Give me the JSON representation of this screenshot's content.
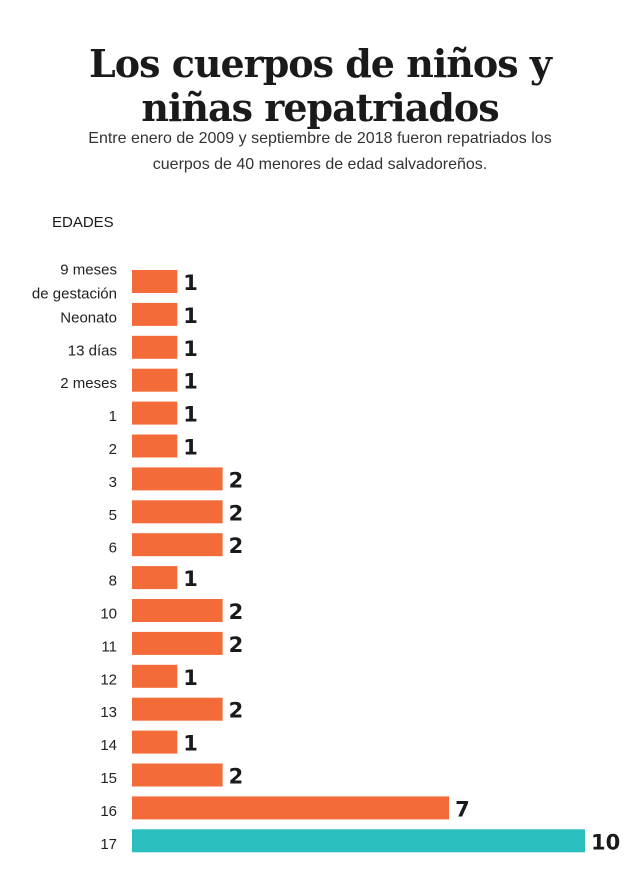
{
  "chart_data": {
    "type": "bar",
    "orientation": "horizontal",
    "title_lines": [
      "Los cuerpos de niños y",
      "niñas repatriados"
    ],
    "subtitle_lines": [
      "Entre enero de 2009 y septiembre de 2018 fueron repatriados los",
      "cuerpos de 40 menores de edad salvadoreños."
    ],
    "ylabel": "EDADES",
    "categories": [
      [
        "9 meses",
        "de gestación"
      ],
      [
        "Neonato"
      ],
      [
        "13 días"
      ],
      [
        "2 meses"
      ],
      [
        "1"
      ],
      [
        "2"
      ],
      [
        "3"
      ],
      [
        "5"
      ],
      [
        "6"
      ],
      [
        "8"
      ],
      [
        "10"
      ],
      [
        "11"
      ],
      [
        "12"
      ],
      [
        "13"
      ],
      [
        "14"
      ],
      [
        "15"
      ],
      [
        "16"
      ],
      [
        "17"
      ]
    ],
    "values": [
      1,
      1,
      1,
      1,
      1,
      1,
      2,
      2,
      2,
      1,
      2,
      2,
      1,
      2,
      1,
      2,
      7,
      10
    ],
    "xlim": [
      0,
      10
    ],
    "grid": false,
    "colors": {
      "default": "#F26B38",
      "highlight": "#2BBFC0"
    },
    "highlight_index": 17
  }
}
